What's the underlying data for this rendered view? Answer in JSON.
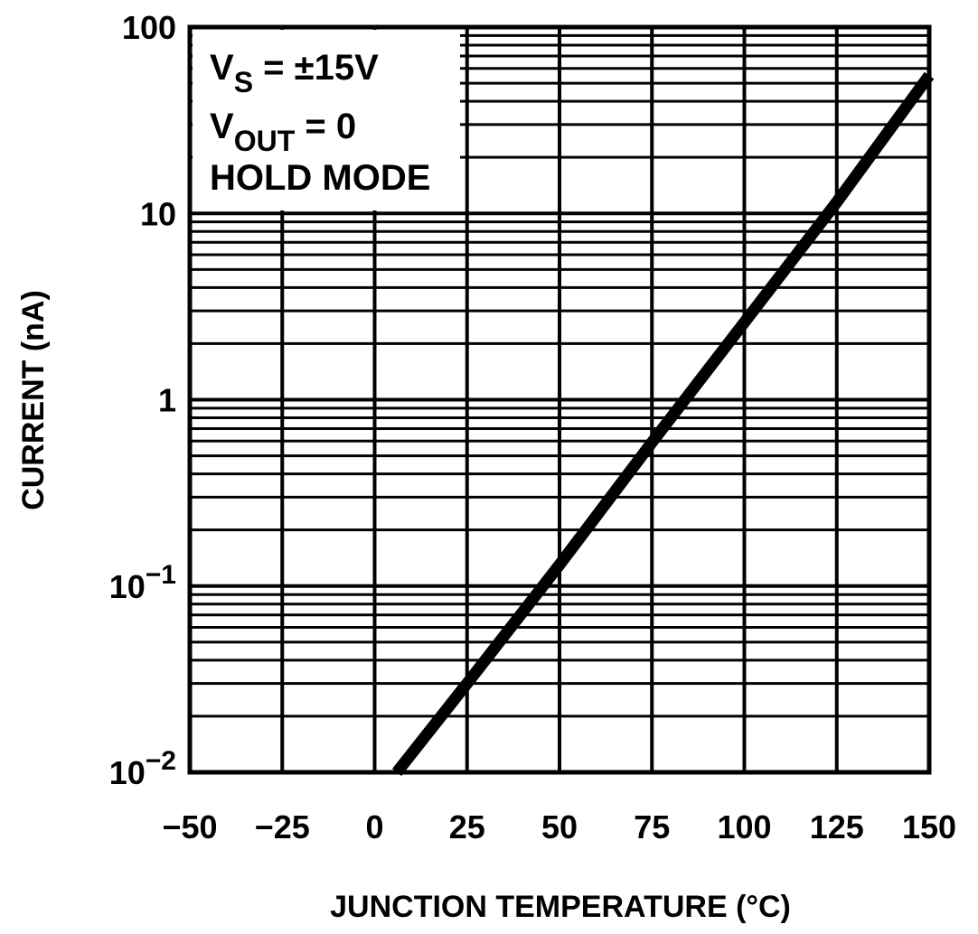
{
  "chart_data": {
    "type": "line",
    "title": "",
    "xlabel": "JUNCTION TEMPERATURE (°C)",
    "ylabel": "CURRENT (nA)",
    "xlim": [
      -50,
      150
    ],
    "ylim": [
      0.01,
      100
    ],
    "yscale": "log",
    "grid": true,
    "x_ticks": [
      -50,
      -25,
      0,
      25,
      50,
      75,
      100,
      125,
      150
    ],
    "x_tick_labels": [
      "−50",
      "−25",
      "0",
      "25",
      "50",
      "75",
      "100",
      "125",
      "150"
    ],
    "y_ticks": [
      100,
      10,
      1,
      0.1,
      0.01
    ],
    "y_tick_labels": [
      {
        "base": "100",
        "exp": ""
      },
      {
        "base": "10",
        "exp": ""
      },
      {
        "base": "1",
        "exp": ""
      },
      {
        "base": "10",
        "exp": "−1"
      },
      {
        "base": "10",
        "exp": "−2"
      }
    ],
    "legend": {
      "placement": "top-left",
      "lines": [
        {
          "main": "V",
          "sub": "S",
          "rest": " = ±15V"
        },
        {
          "main": "V",
          "sub": "OUT",
          "rest": " = 0"
        },
        {
          "main": "HOLD MODE",
          "sub": "",
          "rest": ""
        }
      ]
    },
    "series": [
      {
        "name": "Hold mode current",
        "x": [
          6,
          25,
          50,
          75,
          100,
          125,
          150
        ],
        "y": [
          0.01,
          0.03,
          0.13,
          0.59,
          2.6,
          11.5,
          55
        ]
      }
    ]
  }
}
